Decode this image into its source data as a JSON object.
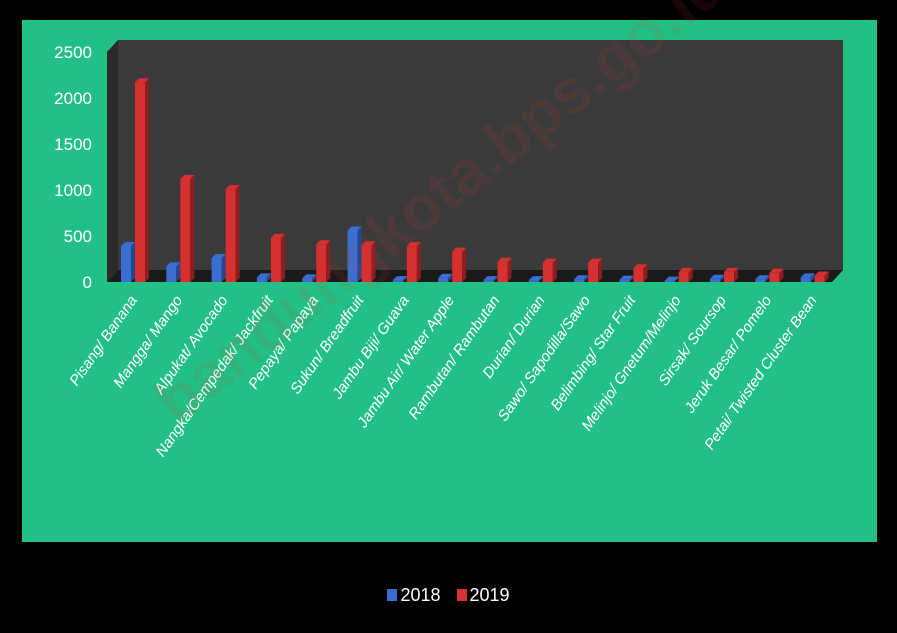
{
  "chart_data": {
    "type": "bar",
    "title": "",
    "xlabel": "",
    "ylabel": "",
    "ylim": [
      0,
      2500
    ],
    "yticks": [
      0,
      500,
      1000,
      1500,
      2000,
      2500
    ],
    "grid": false,
    "legend_position": "bottom",
    "categories": [
      "Pisang/ Banana",
      "Mangga/ Mango",
      "Alpukat/ Avocado",
      "Nangka/Cempedak/ Jackfruit",
      "Pepaya/ Papaya",
      "Sukun/ Breadfruit",
      "Jambu Biji/ Guava",
      "Jambu Air/ Water Apple",
      "Rambutan/ Rambutan",
      "Durian/ Durian",
      "Sawo/ Sapodilla/Sawo",
      "Belimbing/ Star Fruit",
      "Melinjo/ Gnetum/Melinjo",
      "Sirsak/ Soursop",
      "Jeruk Besar/ Pomelo",
      "Petai/ Twisted Cluster Bean"
    ],
    "series": [
      {
        "name": "2018",
        "color": "#3a6fd1",
        "values": [
          390,
          170,
          260,
          50,
          40,
          560,
          20,
          45,
          20,
          20,
          30,
          25,
          15,
          35,
          30,
          50
        ]
      },
      {
        "name": "2019",
        "color": "#d63031",
        "values": [
          2170,
          1120,
          1010,
          480,
          410,
          400,
          390,
          330,
          220,
          210,
          210,
          150,
          110,
          110,
          100,
          70
        ]
      }
    ]
  },
  "colors": {
    "page_background": "#000000",
    "plot_area_background": "#22c084",
    "plot_wall": "#3a3a3a",
    "plot_floor": "#1a1a1a",
    "text": "#ffffff"
  },
  "watermark": "bandungkota.bps.go.id"
}
